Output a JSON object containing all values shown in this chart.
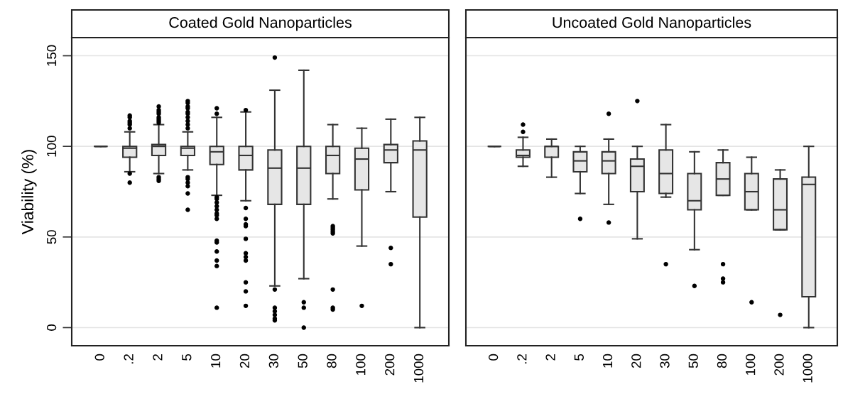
{
  "chart_data": [
    {
      "type": "box",
      "title": "Coated Gold Nanoparticles",
      "ylabel": "Viability (%)",
      "categories": [
        "0",
        ".2",
        "2",
        "5",
        "10",
        "20",
        "30",
        "50",
        "80",
        "100",
        "200",
        "1000"
      ],
      "boxes": [
        {
          "low": 100,
          "q1": 100,
          "median": 100,
          "q3": 100,
          "high": 100
        },
        {
          "low": 86,
          "q1": 94,
          "median": 99,
          "q3": 100,
          "high": 108,
          "outliers": [
            117,
            116,
            114,
            113,
            112,
            110,
            85,
            80
          ]
        },
        {
          "low": 85,
          "q1": 95,
          "median": 100,
          "q3": 101,
          "high": 112,
          "outliers": [
            122,
            120,
            119,
            118,
            116,
            115,
            114,
            113,
            83,
            82,
            81
          ]
        },
        {
          "low": 87,
          "q1": 95,
          "median": 99,
          "q3": 100,
          "high": 108,
          "outliers": [
            125,
            124,
            122,
            121,
            119,
            118,
            116,
            114,
            112,
            110,
            83,
            82,
            80,
            78,
            74,
            65
          ]
        },
        {
          "low": 73,
          "q1": 90,
          "median": 97,
          "q3": 100,
          "high": 116,
          "outliers": [
            121,
            118,
            72,
            71,
            69,
            67,
            65,
            63,
            62,
            60,
            48,
            47,
            42,
            37,
            34,
            11
          ]
        },
        {
          "low": 70,
          "q1": 87,
          "median": 95,
          "q3": 100,
          "high": 119,
          "outliers": [
            120,
            66,
            60,
            57,
            56,
            49,
            41,
            39,
            37,
            25,
            20,
            12
          ]
        },
        {
          "low": 23,
          "q1": 68,
          "median": 88,
          "q3": 98,
          "high": 131,
          "outliers": [
            149,
            21,
            11,
            9,
            7,
            5,
            4
          ]
        },
        {
          "low": 27,
          "q1": 68,
          "median": 88,
          "q3": 100,
          "high": 142,
          "outliers": [
            14,
            11,
            0
          ]
        },
        {
          "low": 71,
          "q1": 85,
          "median": 95,
          "q3": 100,
          "high": 112,
          "outliers": [
            56,
            55,
            54,
            53,
            52,
            21,
            11,
            10
          ]
        },
        {
          "low": 45,
          "q1": 76,
          "median": 93,
          "q3": 99,
          "high": 110,
          "outliers": [
            12
          ]
        },
        {
          "low": 75,
          "q1": 91,
          "median": 98,
          "q3": 101,
          "high": 115,
          "outliers": [
            44,
            35
          ]
        },
        {
          "low": 0,
          "q1": 61,
          "median": 98,
          "q3": 103,
          "high": 116
        }
      ],
      "ylim": [
        -10,
        160
      ],
      "yticks": [
        0,
        50,
        100,
        150
      ],
      "grid": "y"
    },
    {
      "type": "box",
      "title": "Uncoated Gold Nanoparticles",
      "categories": [
        "0",
        ".2",
        "2",
        "5",
        "10",
        "20",
        "30",
        "50",
        "80",
        "100",
        "200",
        "1000"
      ],
      "boxes": [
        {
          "low": 100,
          "q1": 100,
          "median": 100,
          "q3": 100,
          "high": 100
        },
        {
          "low": 89,
          "q1": 94,
          "median": 95,
          "q3": 98,
          "high": 105,
          "outliers": [
            112,
            108
          ]
        },
        {
          "low": 83,
          "q1": 94,
          "median": 100,
          "q3": 100,
          "high": 104
        },
        {
          "low": 74,
          "q1": 86,
          "median": 92,
          "q3": 97,
          "high": 100,
          "outliers": [
            60
          ]
        },
        {
          "low": 68,
          "q1": 85,
          "median": 92,
          "q3": 97,
          "high": 104,
          "outliers": [
            118,
            58
          ]
        },
        {
          "low": 49,
          "q1": 75,
          "median": 89,
          "q3": 93,
          "high": 100,
          "outliers": [
            125
          ]
        },
        {
          "low": 72,
          "q1": 74,
          "median": 85,
          "q3": 98,
          "high": 112,
          "outliers": [
            35
          ]
        },
        {
          "low": 43,
          "q1": 65,
          "median": 70,
          "q3": 85,
          "high": 97,
          "outliers": [
            23
          ]
        },
        {
          "low": 73,
          "q1": 73,
          "median": 82,
          "q3": 91,
          "high": 98,
          "outliers": [
            35,
            27,
            25
          ]
        },
        {
          "low": 65,
          "q1": 65,
          "median": 75,
          "q3": 85,
          "high": 94,
          "outliers": [
            14
          ]
        },
        {
          "low": 54,
          "q1": 54,
          "median": 65,
          "q3": 82,
          "high": 87,
          "outliers": [
            7
          ]
        },
        {
          "low": 0,
          "q1": 17,
          "median": 79,
          "q3": 83,
          "high": 100
        }
      ],
      "ylim": [
        -10,
        160
      ],
      "yticks": [
        0,
        50,
        100,
        150
      ],
      "grid": "y",
      "tick_labels": "x"
    }
  ]
}
